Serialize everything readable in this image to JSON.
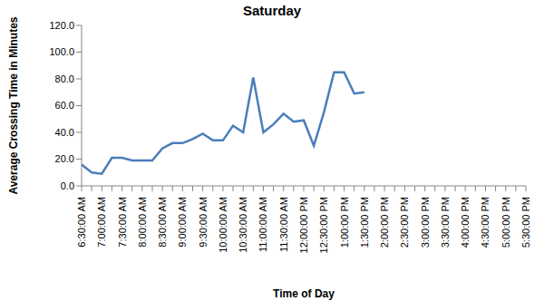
{
  "chart_data": {
    "type": "line",
    "title": "Saturday",
    "x_label": "Time of Day",
    "y_label": "Average Crossing Time in Minutes",
    "categories": [
      "6:30:00 AM",
      null,
      "7:00:00 AM",
      null,
      "7:30:00 AM",
      null,
      "8:00:00 AM",
      null,
      "8:30:00 AM",
      null,
      "9:00:00 AM",
      null,
      "9:30:00 AM",
      null,
      "10:00:00 AM",
      null,
      "10:30:00 AM",
      null,
      "11:00:00 AM",
      null,
      "11:30:00 AM",
      null,
      "12:00:00 PM",
      null,
      "12:30:00 PM",
      null,
      "1:00:00 PM",
      null,
      "1:30:00 PM",
      null,
      "2:00:00 PM",
      null,
      "2:30:00 PM",
      null,
      "3:00:00 PM",
      null,
      "3:30:00 PM",
      null,
      "4:00:00 PM",
      null,
      "4:30:00 PM",
      null,
      "5:00:00 PM",
      null,
      "5:30:00 PM"
    ],
    "values": [
      16,
      10,
      9,
      21,
      21,
      19,
      19,
      19,
      28,
      32,
      32,
      35,
      39,
      34,
      34,
      45,
      40,
      81,
      40,
      46,
      54,
      48,
      49,
      30,
      55,
      85,
      85,
      69,
      70,
      null,
      null,
      null,
      null,
      null,
      null,
      null,
      null,
      null,
      null,
      null,
      null,
      null,
      null,
      null,
      null
    ],
    "color": "#4a7ebb",
    "ylim": [
      0,
      120
    ],
    "yticks": [
      {
        "value": 0,
        "label": "0.0"
      },
      {
        "value": 20,
        "label": "20.0"
      },
      {
        "value": 40,
        "label": "40.0"
      },
      {
        "value": 60,
        "label": "60.0"
      },
      {
        "value": 80,
        "label": "80.0"
      },
      {
        "value": 100,
        "label": "100.0"
      },
      {
        "value": 120,
        "label": "120.0"
      }
    ],
    "grid": false
  }
}
